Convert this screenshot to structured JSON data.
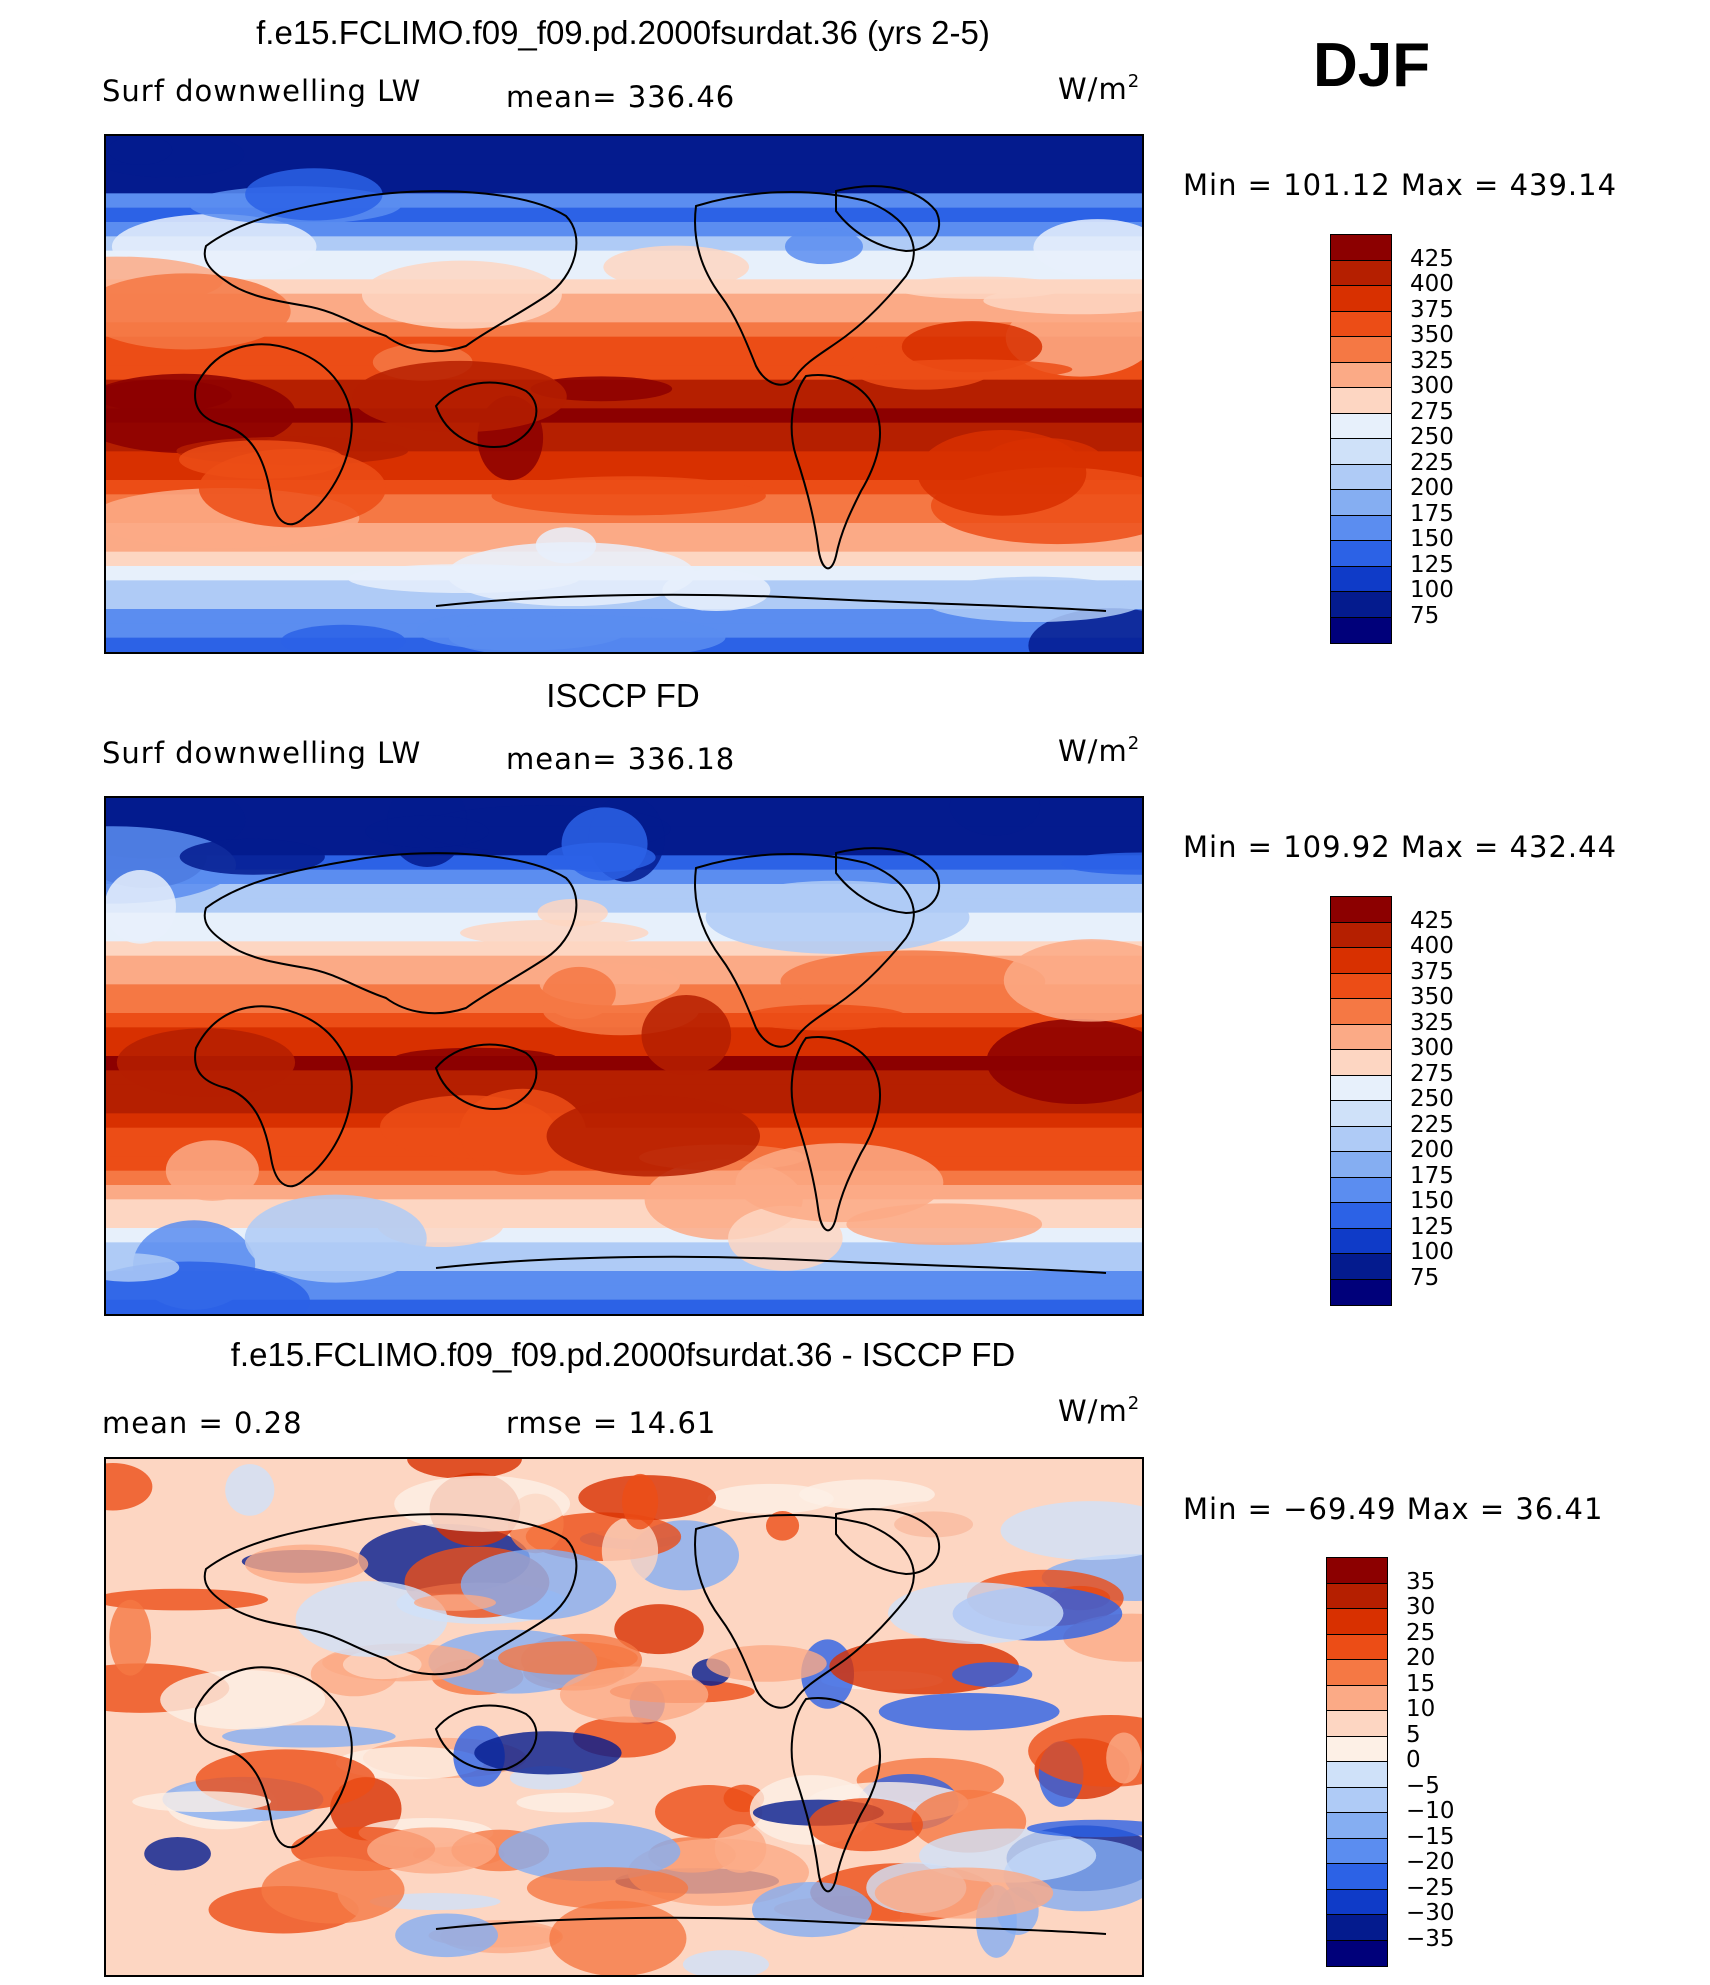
{
  "season": "DJF",
  "panels": [
    {
      "id": "model",
      "title": "f.e15.FCLIMO.f09_f09.pd.2000fsurdat.36 (yrs 2-5)",
      "left_label": "Surf  downwelling LW",
      "center_label": "mean=  336.46",
      "unit_base": "W/m",
      "unit_exp": "2",
      "minmax": "Min  =  101.12  Max  =  439.14",
      "colorbar": {
        "labels": [
          "425",
          "400",
          "375",
          "350",
          "325",
          "300",
          "275",
          "250",
          "225",
          "200",
          "175",
          "150",
          "125",
          "100",
          "75"
        ],
        "colors": [
          "#8c0000",
          "#b51f00",
          "#d83000",
          "#ec4d16",
          "#f57844",
          "#fbaa86",
          "#fdd6c2",
          "#e7f0fb",
          "#cfe1f9",
          "#afcbf6",
          "#85aef2",
          "#5b8df0",
          "#2c62e6",
          "#0f3bc8",
          "#041b8e",
          "#00007a"
        ]
      },
      "field": {
        "colors": [
          "#041b8e",
          "#2c62e6",
          "#5b8df0",
          "#afcbf6",
          "#e7f0fb",
          "#fdd6c2",
          "#fbaa86",
          "#f57844",
          "#ec4d16",
          "#d83000",
          "#b51f00",
          "#8c0000"
        ]
      }
    },
    {
      "id": "obs",
      "title": "ISCCP FD",
      "left_label": "Surf  downwelling LW",
      "center_label": "mean=  336.18",
      "unit_base": "W/m",
      "unit_exp": "2",
      "minmax": "Min  =  109.92  Max  =  432.44",
      "colorbar": {
        "labels": [
          "425",
          "400",
          "375",
          "350",
          "325",
          "300",
          "275",
          "250",
          "225",
          "200",
          "175",
          "150",
          "125",
          "100",
          "75"
        ],
        "colors": [
          "#8c0000",
          "#b51f00",
          "#d83000",
          "#ec4d16",
          "#f57844",
          "#fbaa86",
          "#fdd6c2",
          "#e7f0fb",
          "#cfe1f9",
          "#afcbf6",
          "#85aef2",
          "#5b8df0",
          "#2c62e6",
          "#0f3bc8",
          "#041b8e",
          "#00007a"
        ]
      },
      "field": {
        "colors": [
          "#041b8e",
          "#2c62e6",
          "#5b8df0",
          "#afcbf6",
          "#e7f0fb",
          "#fdd6c2",
          "#fbaa86",
          "#f57844",
          "#ec4d16",
          "#d83000",
          "#b51f00",
          "#8c0000"
        ]
      }
    },
    {
      "id": "diff",
      "title": "f.e15.FCLIMO.f09_f09.pd.2000fsurdat.36 - ISCCP FD",
      "left_label": "mean  =      0.28",
      "center_label": "rmse  =     14.61",
      "unit_base": "W/m",
      "unit_exp": "2",
      "minmax": "Min  =  −69.49  Max  =    36.41",
      "colorbar": {
        "labels": [
          "35",
          "30",
          "25",
          "20",
          "15",
          "10",
          "5",
          "0",
          "−5",
          "−10",
          "−15",
          "−20",
          "−25",
          "−30",
          "−35"
        ],
        "colors": [
          "#8c0000",
          "#b51f00",
          "#d83000",
          "#ec4d16",
          "#f57844",
          "#fbaa86",
          "#fdd6c2",
          "#fdf0e6",
          "#cfe1f9",
          "#afcbf6",
          "#85aef2",
          "#5b8df0",
          "#2c62e6",
          "#0f3bc8",
          "#041b8e",
          "#00007a"
        ]
      },
      "field": {
        "colors": [
          "#041b8e",
          "#2c62e6",
          "#85aef2",
          "#cfe1f9",
          "#fdf0e6",
          "#fdd6c2",
          "#fbaa86",
          "#f57844",
          "#ec4d16",
          "#d83000"
        ]
      }
    }
  ]
}
